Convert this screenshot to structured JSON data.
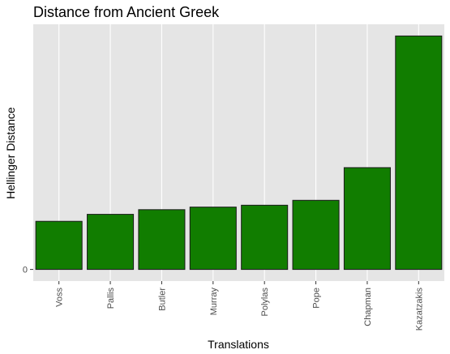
{
  "chart_data": {
    "type": "bar",
    "title": "Distance from Ancient Greek",
    "xlabel": "Translations",
    "ylabel": "Hellinger Distance",
    "categories": [
      "Voss",
      "Pallis",
      "Butler",
      "Murray",
      "Polylas",
      "Pope",
      "Chapman",
      "Kazatzakis"
    ],
    "values": [
      0.206,
      0.236,
      0.256,
      0.267,
      0.275,
      0.296,
      0.436,
      1.0
    ],
    "ylim": [
      -0.05,
      1.05
    ],
    "yticks": [
      0
    ],
    "ytick_labels": [
      "0"
    ],
    "grid": true,
    "legend": "none",
    "colors": {
      "bar_fill": "#117d00",
      "bar_stroke": "#1a1a1a",
      "panel": "#e5e5e5",
      "grid": "#ffffff"
    }
  }
}
